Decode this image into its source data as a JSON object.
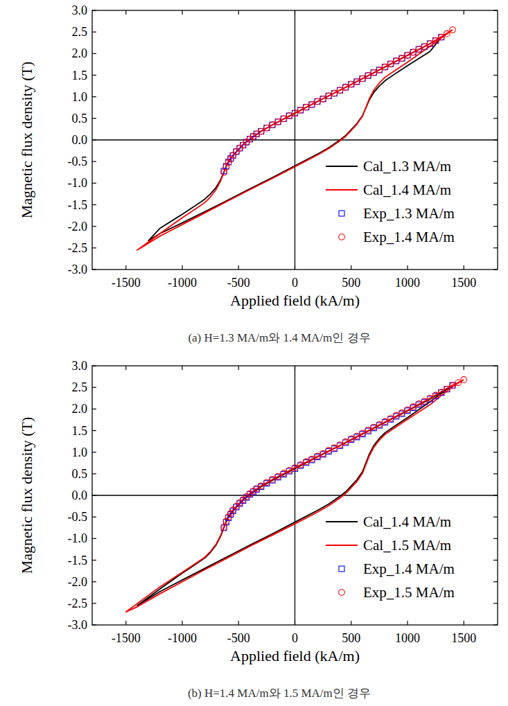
{
  "chart_data": [
    {
      "type": "line",
      "title": "(a) H=1.3 MA/m와 1.4 MA/m인 경우",
      "x_label": "Applied field (kA/m)",
      "y_label": "Magnetic flux density (T)",
      "xlim": [
        -1800,
        1800
      ],
      "ylim": [
        -3,
        3
      ],
      "xticks": [
        -1500,
        -1000,
        -500,
        0,
        500,
        1000,
        1500
      ],
      "yticks": [
        {
          "value": -3,
          "label": "-3.0"
        },
        -2.5,
        {
          "value": -2,
          "label": "-2.0"
        },
        -1.5,
        {
          "value": -1,
          "label": "-1.0"
        },
        -0.5,
        {
          "value": 0,
          "label": "0.0"
        },
        0.5,
        {
          "value": 1,
          "label": "1.0"
        },
        1.5,
        {
          "value": 2,
          "label": "2.0"
        },
        2.5,
        {
          "value": 3,
          "label": "3.0"
        }
      ],
      "legend": "lower right",
      "series": [
        {
          "name": "Cal_1.3 MA/m",
          "type": "line",
          "color": "#000000",
          "x": [
            1300,
            1200,
            1000,
            800,
            600,
            400,
            200,
            0,
            -200,
            -300,
            -400,
            -450,
            -500,
            -550,
            -600,
            -630,
            -660,
            -700,
            -750,
            -800,
            -900,
            -1000,
            -1200,
            -1300,
            -1200,
            -1000,
            -800,
            -600,
            -400,
            -200,
            0,
            200,
            300,
            400,
            450,
            500,
            550,
            600,
            630,
            660,
            700,
            750,
            800,
            900,
            1000,
            1200,
            1300
          ],
          "values": [
            2.38,
            2.23,
            1.96,
            1.69,
            1.42,
            1.15,
            0.89,
            0.62,
            0.35,
            0.2,
            0.02,
            -0.08,
            -0.22,
            -0.36,
            -0.55,
            -0.74,
            -0.92,
            -1.1,
            -1.25,
            -1.37,
            -1.55,
            -1.72,
            -2.05,
            -2.33,
            -2.17,
            -1.92,
            -1.66,
            -1.4,
            -1.13,
            -0.87,
            -0.6,
            -0.33,
            -0.18,
            0.0,
            0.1,
            0.24,
            0.38,
            0.56,
            0.74,
            0.92,
            1.1,
            1.25,
            1.37,
            1.55,
            1.72,
            2.05,
            2.38
          ]
        },
        {
          "name": "Cal_1.4 MA/m",
          "type": "line",
          "color": "#ff0000",
          "x": [
            1400,
            1200,
            1000,
            800,
            600,
            400,
            200,
            0,
            -200,
            -300,
            -400,
            -450,
            -500,
            -550,
            -600,
            -630,
            -660,
            -700,
            -750,
            -800,
            -900,
            -1000,
            -1200,
            -1400,
            -1200,
            -1000,
            -800,
            -600,
            -400,
            -200,
            0,
            200,
            300,
            400,
            450,
            500,
            550,
            600,
            630,
            660,
            700,
            750,
            800,
            900,
            1000,
            1200,
            1400
          ],
          "values": [
            2.55,
            2.23,
            1.96,
            1.69,
            1.42,
            1.15,
            0.89,
            0.62,
            0.35,
            0.2,
            0.02,
            -0.08,
            -0.22,
            -0.36,
            -0.55,
            -0.75,
            -0.95,
            -1.15,
            -1.32,
            -1.45,
            -1.63,
            -1.8,
            -2.17,
            -2.55,
            -2.23,
            -1.96,
            -1.69,
            -1.42,
            -1.15,
            -0.89,
            -0.62,
            -0.35,
            -0.2,
            -0.02,
            0.08,
            0.22,
            0.36,
            0.55,
            0.75,
            0.95,
            1.15,
            1.32,
            1.45,
            1.63,
            1.8,
            2.17,
            2.55
          ]
        },
        {
          "name": "Exp_1.3 MA/m",
          "type": "scatter",
          "marker": "square",
          "color": "#0000ff",
          "x": [
            -630,
            -610,
            -590,
            -570,
            -550,
            -520,
            -490,
            -460,
            -430,
            -400,
            -370,
            -340,
            -300,
            -250,
            -200,
            -150,
            -100,
            -50,
            0,
            50,
            100,
            150,
            200,
            250,
            300,
            350,
            400,
            450,
            500,
            550,
            600,
            650,
            700,
            750,
            800,
            850,
            900,
            950,
            1000,
            1050,
            1100,
            1150,
            1200,
            1250,
            1300
          ],
          "values": [
            -0.72,
            -0.61,
            -0.51,
            -0.43,
            -0.36,
            -0.27,
            -0.19,
            -0.12,
            -0.05,
            0.02,
            0.08,
            0.14,
            0.2,
            0.28,
            0.35,
            0.42,
            0.49,
            0.56,
            0.62,
            0.69,
            0.76,
            0.82,
            0.89,
            0.95,
            1.02,
            1.08,
            1.15,
            1.22,
            1.29,
            1.35,
            1.42,
            1.49,
            1.56,
            1.62,
            1.69,
            1.76,
            1.83,
            1.89,
            1.96,
            2.03,
            2.1,
            2.16,
            2.23,
            2.3,
            2.38
          ]
        },
        {
          "name": "Exp_1.4 MA/m",
          "type": "scatter",
          "marker": "circle",
          "color": "#ff0000",
          "x": [
            -630,
            -610,
            -590,
            -570,
            -550,
            -520,
            -490,
            -460,
            -430,
            -400,
            -370,
            -340,
            -300,
            -250,
            -200,
            -150,
            -100,
            -50,
            0,
            50,
            100,
            150,
            200,
            250,
            300,
            350,
            400,
            450,
            500,
            550,
            600,
            650,
            700,
            750,
            800,
            850,
            900,
            950,
            1000,
            1050,
            1100,
            1150,
            1200,
            1250,
            1300,
            1350,
            1400
          ],
          "values": [
            -0.75,
            -0.62,
            -0.52,
            -0.44,
            -0.36,
            -0.27,
            -0.19,
            -0.12,
            -0.05,
            0.02,
            0.08,
            0.14,
            0.2,
            0.28,
            0.35,
            0.42,
            0.49,
            0.56,
            0.62,
            0.69,
            0.76,
            0.82,
            0.89,
            0.95,
            1.02,
            1.08,
            1.15,
            1.22,
            1.29,
            1.35,
            1.42,
            1.49,
            1.56,
            1.62,
            1.69,
            1.76,
            1.83,
            1.89,
            1.96,
            2.03,
            2.1,
            2.16,
            2.23,
            2.3,
            2.38,
            2.46,
            2.55
          ]
        }
      ]
    },
    {
      "type": "line",
      "title": "(b) H=1.4 MA/m와 1.5 MA/m인 경우",
      "x_label": "Applied field (kA/m)",
      "y_label": "Magnetic flux density (T)",
      "xlim": [
        -1800,
        1800
      ],
      "ylim": [
        -3,
        3
      ],
      "xticks": [
        -1500,
        -1000,
        -500,
        0,
        500,
        1000,
        1500
      ],
      "yticks": [
        {
          "value": -3,
          "label": "-3.0"
        },
        -2.5,
        {
          "value": -2,
          "label": "-2.0"
        },
        -1.5,
        {
          "value": -1,
          "label": "-1.0"
        },
        -0.5,
        {
          "value": 0,
          "label": "0.0"
        },
        0.5,
        {
          "value": 1,
          "label": "1.0"
        },
        1.5,
        {
          "value": 2,
          "label": "2.0"
        },
        2.5,
        {
          "value": 3,
          "label": "3.0"
        }
      ],
      "legend": "lower right",
      "series": [
        {
          "name": "Cal_1.4 MA/m",
          "type": "line",
          "color": "#000000",
          "x": [
            1400,
            1200,
            1000,
            800,
            600,
            400,
            200,
            0,
            -200,
            -300,
            -400,
            -450,
            -500,
            -550,
            -600,
            -630,
            -660,
            -700,
            -750,
            -800,
            -900,
            -1000,
            -1200,
            -1400,
            -1200,
            -1000,
            -800,
            -600,
            -400,
            -200,
            0,
            200,
            300,
            400,
            450,
            500,
            550,
            600,
            630,
            660,
            700,
            750,
            800,
            900,
            1000,
            1200,
            1400
          ],
          "values": [
            2.55,
            2.23,
            1.96,
            1.69,
            1.42,
            1.15,
            0.89,
            0.62,
            0.35,
            0.2,
            0.02,
            -0.08,
            -0.22,
            -0.36,
            -0.55,
            -0.75,
            -0.95,
            -1.15,
            -1.32,
            -1.45,
            -1.63,
            -1.8,
            -2.17,
            -2.55,
            -2.23,
            -1.96,
            -1.69,
            -1.42,
            -1.15,
            -0.89,
            -0.62,
            -0.35,
            -0.2,
            -0.02,
            0.08,
            0.22,
            0.36,
            0.55,
            0.75,
            0.95,
            1.15,
            1.32,
            1.45,
            1.63,
            1.8,
            2.17,
            2.55
          ]
        },
        {
          "name": "Cal_1.5 MA/m",
          "type": "line",
          "color": "#ff0000",
          "x": [
            1500,
            1400,
            1200,
            1000,
            800,
            600,
            400,
            200,
            0,
            -200,
            -300,
            -400,
            -450,
            -500,
            -550,
            -600,
            -630,
            -660,
            -700,
            -750,
            -800,
            -900,
            -1000,
            -1200,
            -1500,
            -1400,
            -1200,
            -1000,
            -800,
            -600,
            -400,
            -200,
            0,
            200,
            300,
            400,
            450,
            500,
            550,
            600,
            630,
            660,
            700,
            750,
            800,
            900,
            1000,
            1200,
            1400,
            1500
          ],
          "values": [
            2.68,
            2.55,
            2.25,
            1.97,
            1.7,
            1.43,
            1.16,
            0.9,
            0.64,
            0.37,
            0.22,
            0.04,
            -0.06,
            -0.2,
            -0.34,
            -0.53,
            -0.73,
            -0.93,
            -1.13,
            -1.3,
            -1.43,
            -1.61,
            -1.78,
            -2.12,
            -2.7,
            -2.58,
            -2.28,
            -2.0,
            -1.72,
            -1.45,
            -1.18,
            -0.92,
            -0.66,
            -0.39,
            -0.24,
            -0.06,
            0.04,
            0.18,
            0.32,
            0.51,
            0.71,
            0.91,
            1.11,
            1.28,
            1.41,
            1.59,
            1.76,
            2.1,
            2.52,
            2.68
          ]
        },
        {
          "name": "Exp_1.4 MA/m",
          "type": "scatter",
          "marker": "square",
          "color": "#0000ff",
          "x": [
            -630,
            -610,
            -590,
            -570,
            -550,
            -520,
            -490,
            -460,
            -430,
            -400,
            -370,
            -340,
            -300,
            -250,
            -200,
            -150,
            -100,
            -50,
            0,
            50,
            100,
            150,
            200,
            250,
            300,
            350,
            400,
            450,
            500,
            550,
            600,
            650,
            700,
            750,
            800,
            850,
            900,
            950,
            1000,
            1050,
            1100,
            1150,
            1200,
            1250,
            1300,
            1350,
            1400
          ],
          "values": [
            -0.75,
            -0.62,
            -0.52,
            -0.44,
            -0.36,
            -0.27,
            -0.19,
            -0.12,
            -0.05,
            0.02,
            0.08,
            0.14,
            0.2,
            0.28,
            0.35,
            0.42,
            0.49,
            0.56,
            0.62,
            0.69,
            0.76,
            0.82,
            0.89,
            0.95,
            1.02,
            1.08,
            1.15,
            1.22,
            1.29,
            1.35,
            1.42,
            1.49,
            1.56,
            1.62,
            1.69,
            1.76,
            1.83,
            1.89,
            1.96,
            2.03,
            2.1,
            2.16,
            2.23,
            2.3,
            2.38,
            2.46,
            2.55
          ]
        },
        {
          "name": "Exp_1.5 MA/m",
          "type": "scatter",
          "marker": "circle",
          "color": "#ff0000",
          "x": [
            -630,
            -610,
            -590,
            -570,
            -550,
            -520,
            -490,
            -460,
            -430,
            -400,
            -370,
            -340,
            -300,
            -250,
            -200,
            -150,
            -100,
            -50,
            0,
            50,
            100,
            150,
            200,
            250,
            300,
            350,
            400,
            450,
            500,
            550,
            600,
            650,
            700,
            750,
            800,
            850,
            900,
            950,
            1000,
            1050,
            1100,
            1150,
            1200,
            1250,
            1300,
            1350,
            1400,
            1450,
            1500
          ],
          "values": [
            -0.74,
            -0.6,
            -0.5,
            -0.42,
            -0.34,
            -0.25,
            -0.17,
            -0.1,
            -0.03,
            0.04,
            0.1,
            0.16,
            0.22,
            0.3,
            0.37,
            0.44,
            0.51,
            0.58,
            0.64,
            0.71,
            0.78,
            0.84,
            0.91,
            0.97,
            1.04,
            1.1,
            1.17,
            1.24,
            1.31,
            1.37,
            1.44,
            1.51,
            1.58,
            1.64,
            1.71,
            1.78,
            1.85,
            1.91,
            1.98,
            2.05,
            2.12,
            2.18,
            2.25,
            2.32,
            2.39,
            2.46,
            2.54,
            2.61,
            2.68
          ]
        }
      ]
    }
  ]
}
